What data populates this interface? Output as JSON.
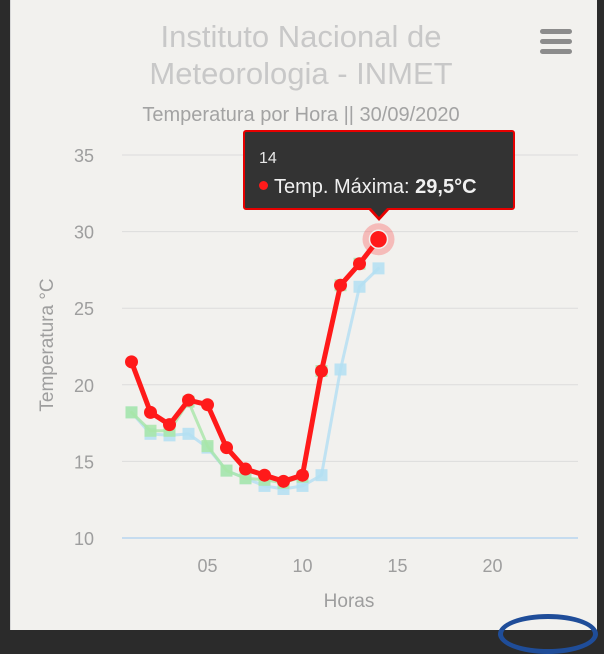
{
  "header": {
    "title_line1": "Instituto Nacional de",
    "title_line2": "Meteorologia - INMET",
    "menu_icon": "hamburger-menu-icon"
  },
  "chart_data": {
    "type": "line",
    "title": "Temperatura por Hora || 30/09/2020",
    "xlabel": "Horas",
    "ylabel": "Temperatura °C",
    "xlim": [
      0.5,
      24.5
    ],
    "ylim": [
      10,
      35
    ],
    "x_ticks": [
      "05",
      "10",
      "15",
      "20"
    ],
    "y_ticks": [
      "10",
      "15",
      "20",
      "25",
      "30",
      "35"
    ],
    "grid": true,
    "x": [
      1,
      2,
      3,
      4,
      5,
      6,
      7,
      8,
      9,
      10,
      11,
      12,
      13,
      14
    ],
    "series": [
      {
        "name": "Temp. Máxima",
        "color": "#ff1a1a",
        "marker": "circle",
        "values": [
          21.5,
          18.2,
          17.4,
          19.0,
          18.7,
          15.9,
          14.5,
          14.1,
          13.7,
          14.1,
          20.9,
          26.5,
          27.9,
          29.5
        ]
      },
      {
        "color": "#a8e6a8",
        "marker": "square",
        "values": [
          18.2,
          17.0,
          17.0,
          18.9,
          16.0,
          14.4,
          13.9,
          13.8,
          13.6,
          14.0,
          20.9,
          26.5,
          27.9,
          29.5
        ]
      },
      {
        "color": "#b3dff2",
        "marker": "square",
        "values": [
          18.2,
          16.8,
          16.7,
          16.8,
          15.9,
          14.4,
          13.9,
          13.4,
          13.2,
          13.4,
          14.1,
          21.0,
          26.4,
          27.6
        ]
      }
    ]
  },
  "tooltip": {
    "header": "14",
    "label": "Temp. Máxima:",
    "value": "29,5°C"
  }
}
